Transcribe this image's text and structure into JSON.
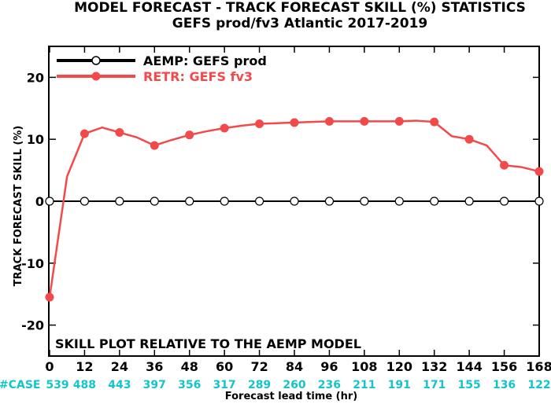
{
  "chart_data": {
    "type": "line",
    "title": "MODEL FORECAST - TRACK FORECAST SKILL (%) STATISTICS",
    "subtitle": "GEFS prod/fv3 Atlantic 2017-2019",
    "xlabel": "Forecast lead time (hr)",
    "ylabel": "TRACK FORECAST SKILL (%)",
    "x": [
      0,
      6,
      12,
      18,
      24,
      30,
      36,
      42,
      48,
      54,
      60,
      66,
      72,
      78,
      84,
      90,
      96,
      102,
      108,
      114,
      120,
      126,
      132,
      138,
      144,
      150,
      156,
      162,
      168
    ],
    "x_ticks": [
      "0",
      "12",
      "24",
      "36",
      "48",
      "60",
      "72",
      "84",
      "96",
      "108",
      "120",
      "132",
      "144",
      "156",
      "168"
    ],
    "y_ticks": [
      "20",
      "10",
      "0",
      "-10",
      "-20"
    ],
    "xlim": [
      0,
      168
    ],
    "ylim": [
      -25,
      25
    ],
    "marker_x": [
      0,
      12,
      24,
      36,
      48,
      60,
      72,
      84,
      96,
      108,
      120,
      132,
      144,
      156,
      168
    ],
    "series": [
      {
        "name": "AEMP: GEFS prod",
        "color": "#000000",
        "marker": "open-circle",
        "values": [
          0,
          0,
          0,
          0,
          0,
          0,
          0,
          0,
          0,
          0,
          0,
          0,
          0,
          0,
          0,
          0,
          0,
          0,
          0,
          0,
          0,
          0,
          0,
          0,
          0,
          0,
          0,
          0,
          0
        ]
      },
      {
        "name": "RETR: GEFS fv3",
        "color": "#f24a4a",
        "marker": "filled-circle",
        "values": [
          -15.5,
          4.0,
          10.9,
          11.9,
          11.1,
          10.3,
          9.0,
          9.9,
          10.7,
          11.3,
          11.8,
          12.2,
          12.5,
          12.6,
          12.7,
          12.8,
          12.9,
          12.9,
          12.9,
          12.9,
          12.9,
          13.0,
          12.8,
          10.5,
          10.0,
          9.0,
          5.8,
          5.5,
          4.8
        ]
      }
    ],
    "case_label": "#CASE",
    "case_counts": [
      "539",
      "488",
      "443",
      "397",
      "356",
      "317",
      "289",
      "260",
      "236",
      "211",
      "191",
      "171",
      "155",
      "136",
      "122"
    ],
    "case_color": "#13c4cc",
    "annotation": "SKILL PLOT RELATIVE TO THE AEMP MODEL",
    "legend_position": "top-left",
    "grid": false
  }
}
